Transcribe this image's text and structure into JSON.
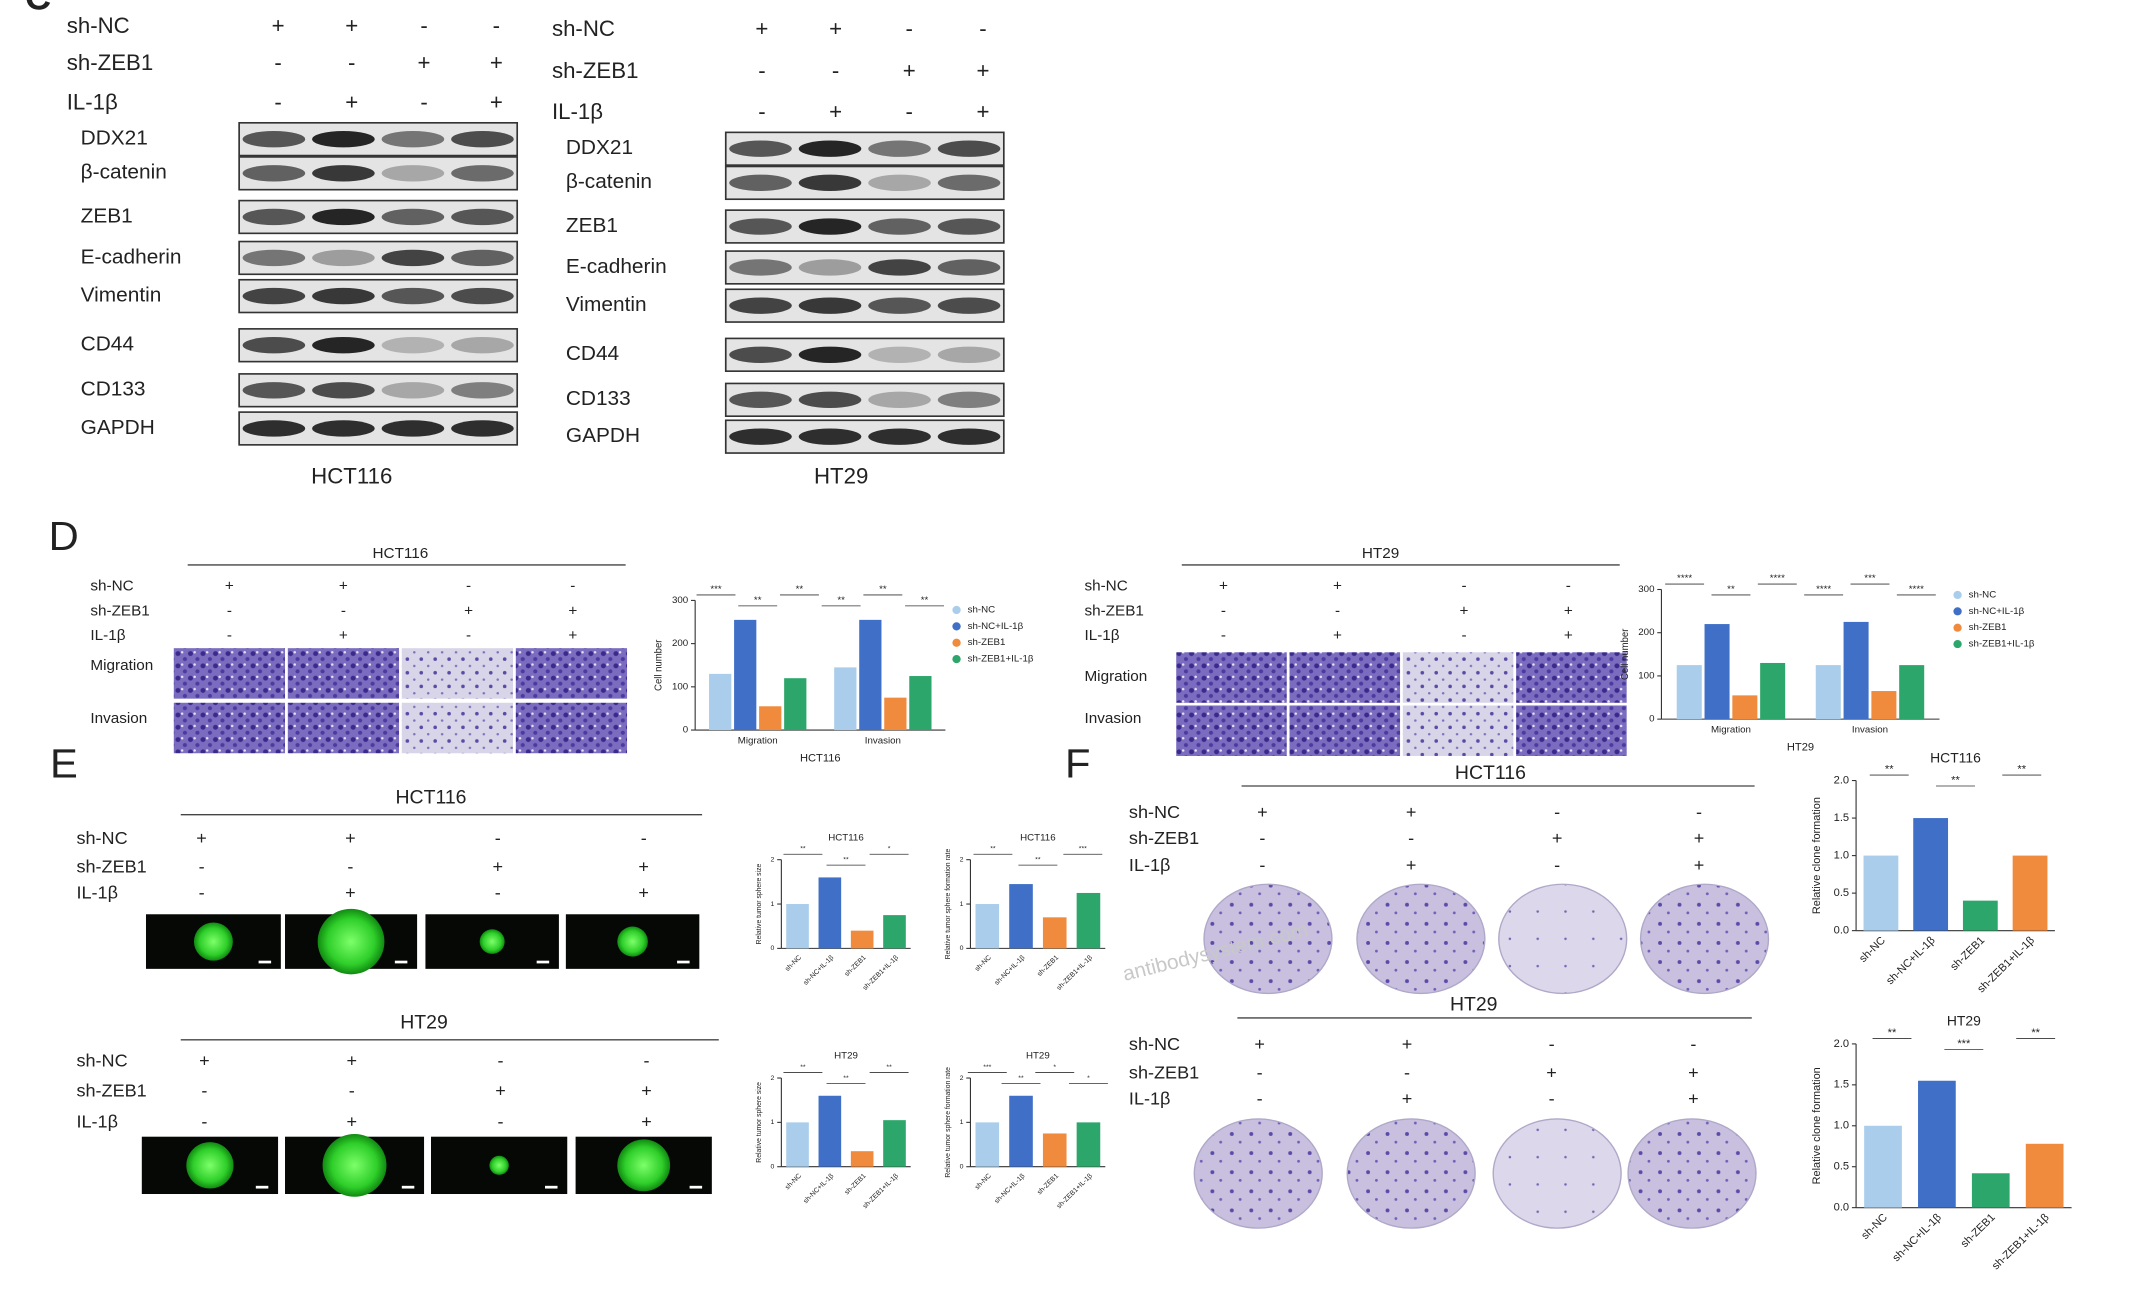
{
  "panels": {
    "c": "C",
    "d": "D",
    "e": "E",
    "f": "F"
  },
  "conditions": {
    "labels": [
      "sh-NC",
      "sh-ZEB1",
      "IL-1β"
    ],
    "signs": [
      [
        "+",
        "+",
        "-",
        "-"
      ],
      [
        "-",
        "-",
        "+",
        "+"
      ],
      [
        "-",
        "+",
        "-",
        "+"
      ]
    ]
  },
  "western": {
    "proteins": [
      "DDX21",
      "β-catenin",
      "ZEB1",
      "E-cadherin",
      "Vimentin",
      "CD44",
      "CD133",
      "GAPDH"
    ],
    "cell_lines": [
      "HCT116",
      "HT29"
    ]
  },
  "transwell": {
    "rows": [
      "Migration",
      "Invasion"
    ],
    "cell_lines": [
      "HCT116",
      "HT29"
    ]
  },
  "sphere": {
    "cell_lines": [
      "HCT116",
      "HT29"
    ]
  },
  "clone": {
    "cell_lines": [
      "HCT116",
      "HT29"
    ]
  },
  "watermark": "antibodysystem.com",
  "chart_data": [
    {
      "type": "bar",
      "y_label": "Cell number",
      "x_label": "HCT116",
      "categories": [
        "Migration",
        "Invasion"
      ],
      "series": [
        {
          "name": "sh-NC",
          "color": "#a9cdea",
          "values": [
            130,
            145
          ]
        },
        {
          "name": "sh-NC+IL-1β",
          "color": "#3f6fc6",
          "values": [
            255,
            255
          ]
        },
        {
          "name": "sh-ZEB1",
          "color": "#f08a3c",
          "values": [
            55,
            75
          ]
        },
        {
          "name": "sh-ZEB1+IL-1β",
          "color": "#2ca66a",
          "values": [
            120,
            125
          ]
        }
      ],
      "ylim": [
        0,
        300
      ],
      "yticks": [
        0,
        100,
        200,
        300
      ],
      "annotations": [
        "***",
        "**",
        "**",
        "**",
        "**",
        "**"
      ]
    },
    {
      "type": "bar",
      "y_label": "Cell number",
      "x_label": "HT29",
      "categories": [
        "Migration",
        "Invasion"
      ],
      "series": [
        {
          "name": "sh-NC",
          "color": "#a9cdea",
          "values": [
            125,
            125
          ]
        },
        {
          "name": "sh-NC+IL-1β",
          "color": "#3f6fc6",
          "values": [
            220,
            225
          ]
        },
        {
          "name": "sh-ZEB1",
          "color": "#f08a3c",
          "values": [
            55,
            65
          ]
        },
        {
          "name": "sh-ZEB1+IL-1β",
          "color": "#2ca66a",
          "values": [
            130,
            125
          ]
        }
      ],
      "ylim": [
        0,
        300
      ],
      "yticks": [
        0,
        100,
        200,
        300
      ],
      "annotations": [
        "****",
        "**",
        "****",
        "****",
        "***",
        "****"
      ]
    },
    {
      "type": "bar",
      "title": "HCT116",
      "y_label": "Relative tumor sphere size",
      "categories": [
        "sh-NC",
        "sh-NC+IL-1β",
        "sh-ZEB1",
        "sh-ZEB1+IL-1β"
      ],
      "values": [
        1.0,
        1.6,
        0.4,
        0.75
      ],
      "colors": [
        "#a9cdea",
        "#3f6fc6",
        "#f08a3c",
        "#2ca66a"
      ],
      "ylim": [
        0,
        2
      ],
      "yticks": [
        0,
        1,
        2
      ],
      "annotations": [
        "**",
        "**",
        "*"
      ]
    },
    {
      "type": "bar",
      "title": "HCT116",
      "y_label": "Relative tumor sphere formation rate",
      "categories": [
        "sh-NC",
        "sh-NC+IL-1β",
        "sh-ZEB1",
        "sh-ZEB1+IL-1β"
      ],
      "values": [
        1.0,
        1.45,
        0.7,
        1.25
      ],
      "colors": [
        "#a9cdea",
        "#3f6fc6",
        "#f08a3c",
        "#2ca66a"
      ],
      "ylim": [
        0,
        2
      ],
      "yticks": [
        0,
        1,
        2
      ],
      "annotations": [
        "**",
        "**",
        "***"
      ]
    },
    {
      "type": "bar",
      "title": "HT29",
      "y_label": "Relative tumor sphere size",
      "categories": [
        "sh-NC",
        "sh-NC+IL-1β",
        "sh-ZEB1",
        "sh-ZEB1+IL-1β"
      ],
      "values": [
        1.0,
        1.6,
        0.35,
        1.05
      ],
      "colors": [
        "#a9cdea",
        "#3f6fc6",
        "#f08a3c",
        "#2ca66a"
      ],
      "ylim": [
        0,
        2
      ],
      "yticks": [
        0,
        1,
        2
      ],
      "annotations": [
        "**",
        "**",
        "**"
      ]
    },
    {
      "type": "bar",
      "title": "HT29",
      "y_label": "Relative tumor sphere formation rate",
      "categories": [
        "sh-NC",
        "sh-NC+IL-1β",
        "sh-ZEB1",
        "sh-ZEB1+IL-1β"
      ],
      "values": [
        1.0,
        1.6,
        0.75,
        1.0
      ],
      "colors": [
        "#a9cdea",
        "#3f6fc6",
        "#f08a3c",
        "#2ca66a"
      ],
      "ylim": [
        0,
        2
      ],
      "yticks": [
        0,
        1,
        2
      ],
      "annotations": [
        "***",
        "**",
        "*",
        "*"
      ]
    },
    {
      "type": "bar",
      "title": "HCT116",
      "y_label": "Relative clone formation",
      "categories": [
        "sh-NC",
        "sh-NC+IL-1β",
        "sh-ZEB1",
        "sh-ZEB1+IL-1β"
      ],
      "values": [
        1.0,
        1.5,
        0.4,
        1.0
      ],
      "colors": [
        "#a9cdea",
        "#3f6fc6",
        "#2ca66a",
        "#f08a3c"
      ],
      "ylim": [
        0,
        2
      ],
      "yticks": [
        {
          "value": 0,
          "label": "0.0"
        },
        {
          "value": 0.5,
          "label": "0.5"
        },
        {
          "value": 1,
          "label": "1.0"
        },
        {
          "value": 1.5,
          "label": "1.5"
        },
        {
          "value": 2,
          "label": "2.0"
        }
      ],
      "annotations": [
        "**",
        "**",
        "**"
      ]
    },
    {
      "type": "bar",
      "title": "HT29",
      "y_label": "Relative clone formation",
      "categories": [
        "sh-NC",
        "sh-NC+IL-1β",
        "sh-ZEB1",
        "sh-ZEB1+IL-1β"
      ],
      "values": [
        1.0,
        1.55,
        0.42,
        0.78
      ],
      "colors": [
        "#a9cdea",
        "#3f6fc6",
        "#2ca66a",
        "#f08a3c"
      ],
      "ylim": [
        0,
        2
      ],
      "yticks": [
        {
          "value": 0,
          "label": "0.0"
        },
        {
          "value": 0.5,
          "label": "0.5"
        },
        {
          "value": 1,
          "label": "1.0"
        },
        {
          "value": 1.5,
          "label": "1.5"
        },
        {
          "value": 2,
          "label": "2.0"
        }
      ],
      "annotations": [
        "**",
        "***",
        "**"
      ]
    }
  ]
}
